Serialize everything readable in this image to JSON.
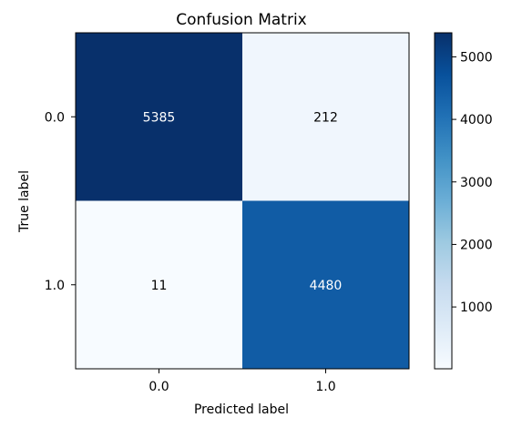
{
  "chart_data": {
    "type": "heatmap",
    "title": "Confusion Matrix",
    "xlabel": "Predicted label",
    "ylabel": "True label",
    "x_categories": [
      "0.0",
      "1.0"
    ],
    "y_categories": [
      "0.0",
      "1.0"
    ],
    "values": [
      [
        5385,
        212
      ],
      [
        11,
        4480
      ]
    ],
    "value_labels": [
      [
        "5385",
        "212"
      ],
      [
        "11",
        "4480"
      ]
    ],
    "colormap": "Blues",
    "colorscale": {
      "min": 11,
      "max": 5385,
      "low_color": "#f7fbff",
      "high_color": "#08306b"
    },
    "colorbar": {
      "ticks": [
        1000,
        2000,
        3000,
        4000,
        5000
      ],
      "tick_labels": [
        "1000",
        "2000",
        "3000",
        "4000",
        "5000"
      ]
    },
    "grid": false
  }
}
